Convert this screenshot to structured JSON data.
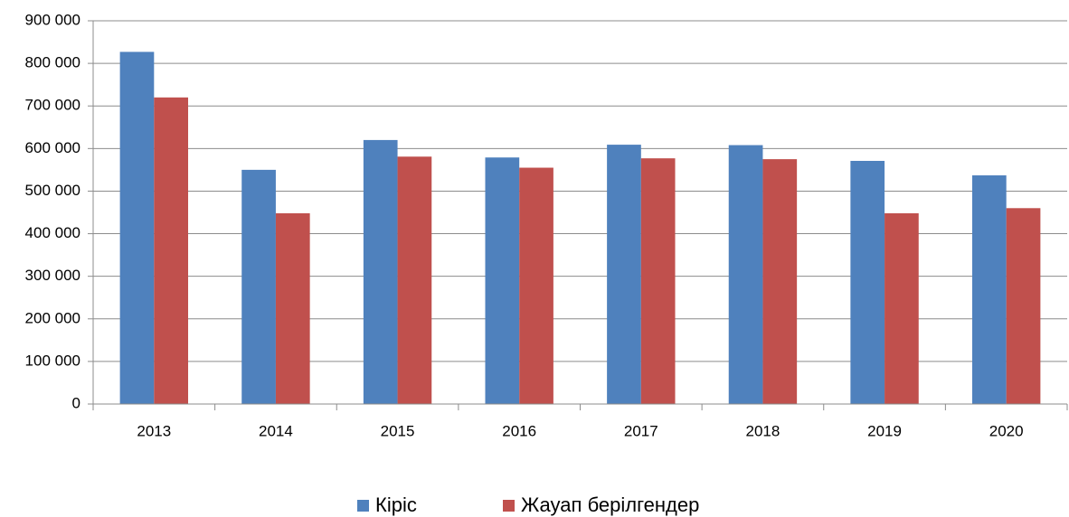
{
  "chart_data": {
    "type": "bar",
    "categories": [
      "2013",
      "2014",
      "2015",
      "2016",
      "2017",
      "2018",
      "2019",
      "2020"
    ],
    "series": [
      {
        "name": "Кіріс",
        "color": "#4f81bd",
        "values": [
          827000,
          550000,
          620000,
          579000,
          609000,
          608000,
          571000,
          537000
        ]
      },
      {
        "name": "Жауап берілгендер",
        "color": "#c0504d",
        "values": [
          720000,
          448000,
          581000,
          555000,
          577000,
          575000,
          448000,
          460000
        ]
      }
    ],
    "ylim": [
      0,
      900000
    ],
    "yticks": [
      0,
      {
        "value": 100000,
        "label": "100 000"
      },
      {
        "value": 200000,
        "label": "200 000"
      },
      {
        "value": 300000,
        "label": "300 000"
      },
      {
        "value": 400000,
        "label": "400 000"
      },
      {
        "value": 500000,
        "label": "500 000"
      },
      {
        "value": 600000,
        "label": "600 000"
      },
      {
        "value": 700000,
        "label": "700 000"
      },
      {
        "value": 800000,
        "label": "800 000"
      },
      {
        "value": 900000,
        "label": "900 000"
      }
    ],
    "grid": true,
    "legend": "bottom"
  }
}
